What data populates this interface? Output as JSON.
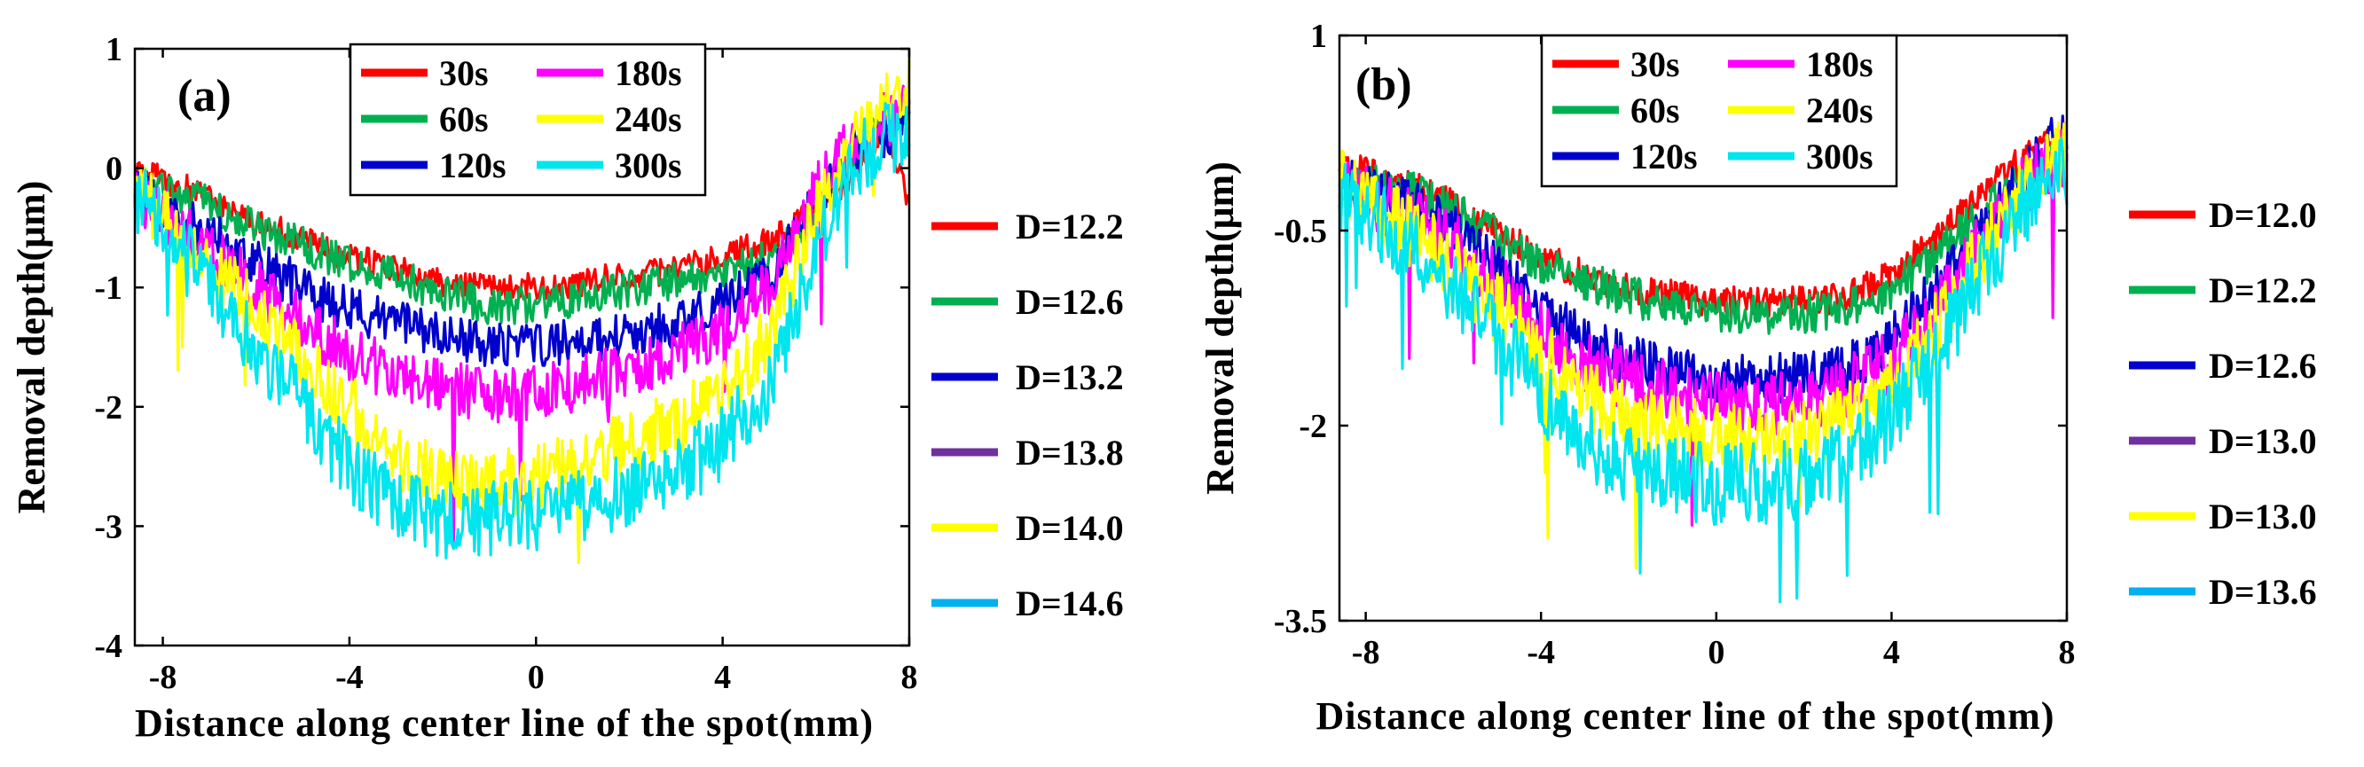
{
  "chart_data": [
    {
      "type": "line",
      "panel_label": "(a)",
      "xlabel": "Distance along center line of the spot(mm)",
      "ylabel": "Removal depth(μm)",
      "xlim": [
        -8.6,
        8
      ],
      "ylim": [
        -4,
        1
      ],
      "xticks": [
        -8,
        -4,
        0,
        4,
        8
      ],
      "xtick_labels": [
        "-8",
        "-4",
        "0",
        "4",
        "8"
      ],
      "yticks": [
        1,
        0,
        -1,
        -2,
        -3,
        -4
      ],
      "ytick_labels": [
        "1",
        "0",
        "-1",
        "-2",
        "-3",
        "-4"
      ],
      "series": [
        {
          "name": "30s",
          "color": "#ff0000",
          "x": [
            -8.6,
            -8,
            -7,
            -6,
            -5,
            -4,
            -3,
            -2,
            -1,
            0,
            1,
            2,
            3,
            4,
            5,
            5.5,
            6,
            6.5,
            7,
            7.5,
            8
          ],
          "y": [
            0,
            -0.1,
            -0.25,
            -0.45,
            -0.6,
            -0.75,
            -0.85,
            -0.95,
            -1.0,
            -1.0,
            -0.95,
            -0.9,
            -0.85,
            -0.75,
            -0.6,
            -0.5,
            -0.35,
            -0.2,
            0.1,
            0.3,
            -0.3
          ]
        },
        {
          "name": "60s",
          "color": "#00b050",
          "x": [
            -8.6,
            -8,
            -7,
            -6,
            -5,
            -4,
            -3,
            -2,
            -1,
            0,
            1,
            2,
            3,
            4,
            5,
            5.5,
            6,
            6.5,
            7,
            7.5,
            8
          ],
          "y": [
            -0.1,
            -0.2,
            -0.3,
            -0.5,
            -0.65,
            -0.8,
            -0.9,
            -1.05,
            -1.15,
            -1.15,
            -1.1,
            -1.0,
            -0.95,
            -0.9,
            -0.75,
            -0.6,
            -0.4,
            -0.1,
            0.2,
            0.4,
            0.5
          ]
        },
        {
          "name": "120s",
          "color": "#0000cc",
          "x": [
            -8.6,
            -8,
            -7,
            -6,
            -5,
            -4,
            -3,
            -2,
            -1,
            0,
            1,
            2,
            3,
            4,
            5,
            5.5,
            6,
            6.5,
            7,
            7.5,
            8
          ],
          "y": [
            -0.2,
            -0.35,
            -0.55,
            -0.8,
            -1.0,
            -1.2,
            -1.3,
            -1.4,
            -1.5,
            -1.5,
            -1.45,
            -1.4,
            -1.3,
            -1.15,
            -0.9,
            -0.6,
            -0.3,
            0.0,
            0.2,
            0.3,
            0.4
          ]
        },
        {
          "name": "180s",
          "color": "#ff00ff",
          "x": [
            -8.6,
            -8,
            -7,
            -6,
            -5,
            -4,
            -3,
            -2,
            -1,
            0,
            1,
            2,
            3,
            4,
            5,
            5.5,
            6,
            6.5,
            7,
            7.5,
            8
          ],
          "y": [
            -0.2,
            -0.4,
            -0.7,
            -1.0,
            -1.3,
            -1.55,
            -1.75,
            -1.85,
            -1.9,
            -1.9,
            -1.8,
            -1.7,
            -1.55,
            -1.35,
            -1.0,
            -0.6,
            -0.2,
            0.1,
            0.3,
            0.4,
            0.5
          ]
        },
        {
          "name": "240s",
          "color": "#ffff00",
          "x": [
            -8.6,
            -8,
            -7,
            -6,
            -5,
            -4,
            -3,
            -2,
            -1,
            0,
            1,
            2,
            3,
            4,
            5,
            5.5,
            6,
            6.5,
            7,
            7.5,
            8
          ],
          "y": [
            -0.2,
            -0.4,
            -0.8,
            -1.2,
            -1.6,
            -2.0,
            -2.4,
            -2.6,
            -2.65,
            -2.6,
            -2.45,
            -2.3,
            -2.15,
            -1.9,
            -1.4,
            -0.9,
            -0.4,
            0.0,
            0.3,
            0.55,
            0.7
          ]
        },
        {
          "name": "300s",
          "color": "#00e5ee",
          "x": [
            -8.6,
            -8,
            -7,
            -6,
            -5,
            -4,
            -3,
            -2,
            -1,
            0,
            1,
            2,
            3,
            4,
            5,
            5.5,
            6,
            6.5,
            7,
            7.5,
            8
          ],
          "y": [
            -0.2,
            -0.5,
            -1.0,
            -1.5,
            -2.0,
            -2.5,
            -2.8,
            -2.95,
            -2.95,
            -2.9,
            -2.8,
            -2.7,
            -2.55,
            -2.3,
            -1.8,
            -1.3,
            -0.7,
            -0.2,
            0.1,
            0.25,
            0.3
          ]
        }
      ],
      "side_legend": [
        {
          "label": "D=12.2",
          "color": "#ff0000"
        },
        {
          "label": "D=12.6",
          "color": "#00b050"
        },
        {
          "label": "D=13.2",
          "color": "#0000cc"
        },
        {
          "label": "D=13.8",
          "color": "#7030a0"
        },
        {
          "label": "D=14.0",
          "color": "#ffff00"
        },
        {
          "label": "D=14.6",
          "color": "#00b0f0"
        }
      ]
    },
    {
      "type": "line",
      "panel_label": "(b)",
      "xlabel": "Distance along center line of the spot(mm)",
      "ylabel": "Removal depth(μm)",
      "xlim": [
        -8.6,
        8
      ],
      "ylim": [
        -3.5,
        1
      ],
      "xticks": [
        -8,
        -4,
        0,
        4,
        8
      ],
      "xtick_labels": [
        "-8",
        "-4",
        "0",
        "4",
        "8"
      ],
      "yticks": [
        1,
        -0.5,
        -2,
        -3.5
      ],
      "ytick_labels": [
        "1",
        "-0.5",
        "-2",
        "-3.5"
      ],
      "series": [
        {
          "name": "30s",
          "color": "#ff0000",
          "x": [
            -8.6,
            -8,
            -7,
            -6,
            -5,
            -4,
            -3,
            -2,
            -1,
            0,
            1,
            2,
            3,
            4,
            5,
            6,
            7,
            7.5,
            8
          ],
          "y": [
            0,
            -0.05,
            -0.15,
            -0.3,
            -0.5,
            -0.7,
            -0.85,
            -0.95,
            -1.0,
            -1.05,
            -1.05,
            -1.05,
            -1.0,
            -0.85,
            -0.55,
            -0.25,
            0.05,
            0.15,
            0.2
          ]
        },
        {
          "name": "60s",
          "color": "#00b050",
          "x": [
            -8.6,
            -8,
            -7,
            -6,
            -5,
            -4,
            -3,
            -2,
            -1,
            0,
            1,
            2,
            3,
            4,
            5,
            6,
            7,
            7.5,
            8
          ],
          "y": [
            -0.1,
            -0.15,
            -0.2,
            -0.35,
            -0.55,
            -0.75,
            -0.9,
            -1.0,
            -1.1,
            -1.15,
            -1.15,
            -1.15,
            -1.1,
            -0.95,
            -0.7,
            -0.4,
            -0.1,
            0.05,
            0.15
          ]
        },
        {
          "name": "120s",
          "color": "#0000cc",
          "x": [
            -8.6,
            -8,
            -7,
            -6,
            -5,
            -4,
            -3,
            -2,
            -1,
            0,
            1,
            2,
            3,
            4,
            5,
            6,
            7,
            7.5,
            8
          ],
          "y": [
            -0.1,
            -0.2,
            -0.3,
            -0.5,
            -0.8,
            -1.1,
            -1.35,
            -1.5,
            -1.6,
            -1.65,
            -1.65,
            -1.6,
            -1.55,
            -1.35,
            -0.95,
            -0.5,
            -0.1,
            0.15,
            0.3
          ]
        },
        {
          "name": "180s",
          "color": "#ff00ff",
          "x": [
            -8.6,
            -8,
            -7,
            -6,
            -5,
            -4,
            -3,
            -2,
            -1,
            0,
            1,
            2,
            3,
            4,
            5,
            6,
            7,
            7.5,
            8
          ],
          "y": [
            -0.15,
            -0.25,
            -0.4,
            -0.6,
            -0.9,
            -1.25,
            -1.5,
            -1.65,
            -1.75,
            -1.8,
            -1.85,
            -1.8,
            -1.7,
            -1.5,
            -1.1,
            -0.6,
            -0.15,
            0.0,
            0.1
          ]
        },
        {
          "name": "240s",
          "color": "#ffff00",
          "x": [
            -8.6,
            -8,
            -7,
            -6,
            -5,
            -4,
            -3,
            -2,
            -1,
            0,
            1,
            2,
            3,
            4,
            5,
            6,
            7,
            7.5,
            8
          ],
          "y": [
            -0.15,
            -0.3,
            -0.5,
            -0.75,
            -1.1,
            -1.45,
            -1.75,
            -1.95,
            -2.05,
            -2.1,
            -2.1,
            -2.05,
            -1.95,
            -1.7,
            -1.25,
            -0.7,
            -0.2,
            0.0,
            0.1
          ]
        },
        {
          "name": "300s",
          "color": "#00e5ee",
          "x": [
            -8.6,
            -8,
            -7,
            -6,
            -5,
            -4,
            -3,
            -2,
            -1,
            0,
            1,
            2,
            3,
            4,
            5,
            6,
            7,
            7.5,
            8
          ],
          "y": [
            -0.2,
            -0.35,
            -0.6,
            -0.9,
            -1.3,
            -1.75,
            -2.1,
            -2.3,
            -2.4,
            -2.45,
            -2.45,
            -2.4,
            -2.25,
            -1.95,
            -1.45,
            -0.85,
            -0.3,
            -0.1,
            0.0
          ]
        }
      ],
      "side_legend": [
        {
          "label": "D=12.0",
          "color": "#ff0000"
        },
        {
          "label": "D=12.2",
          "color": "#00b050"
        },
        {
          "label": "D=12.6",
          "color": "#0000cc"
        },
        {
          "label": "D=13.0",
          "color": "#7030a0"
        },
        {
          "label": "D=13.0",
          "color": "#ffff00"
        },
        {
          "label": "D=13.6",
          "color": "#00b0f0"
        }
      ]
    }
  ]
}
